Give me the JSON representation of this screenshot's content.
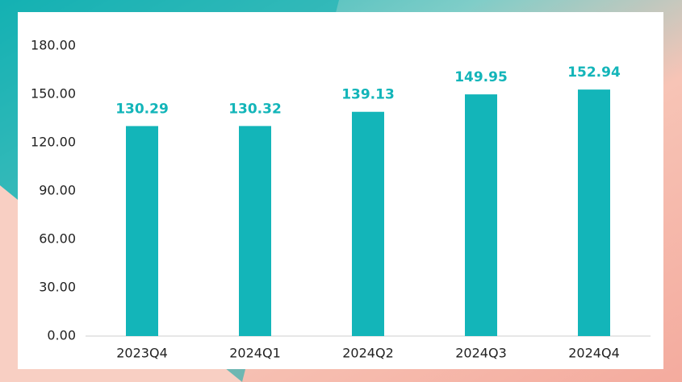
{
  "chart_data": {
    "type": "bar",
    "categories": [
      "2023Q4",
      "2024Q1",
      "2024Q2",
      "2024Q3",
      "2024Q4"
    ],
    "values": [
      130.29,
      130.32,
      139.13,
      149.95,
      152.94
    ],
    "color": "#13b5b9",
    "ylim": [
      0,
      180
    ],
    "yticks": [
      {
        "value": 0,
        "label": "0.00"
      },
      {
        "value": 30,
        "label": "30.00"
      },
      {
        "value": 60,
        "label": "60.00"
      },
      {
        "value": 90,
        "label": "90.00"
      },
      {
        "value": 120,
        "label": "120.00"
      },
      {
        "value": 150,
        "label": "150.00"
      },
      {
        "value": 180,
        "label": "180.00"
      }
    ],
    "grid": false
  }
}
